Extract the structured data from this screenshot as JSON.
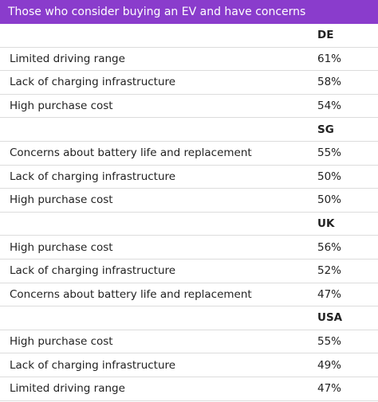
{
  "header": {
    "title": "Those who consider buying an EV and have concerns"
  },
  "table": {
    "groups": [
      {
        "name": "DE",
        "rows": [
          [
            "Limited driving range",
            "61%"
          ],
          [
            "Lack of charging infrastructure",
            "58%"
          ],
          [
            "High purchase cost",
            "54%"
          ]
        ]
      },
      {
        "name": "SG",
        "rows": [
          [
            "Concerns about battery life and replacement",
            "55%"
          ],
          [
            "Lack of charging infrastructure",
            "50%"
          ],
          [
            "High purchase cost",
            "50%"
          ]
        ]
      },
      {
        "name": "UK",
        "rows": [
          [
            "High purchase cost",
            "56%"
          ],
          [
            "Lack of charging infrastructure",
            "52%"
          ],
          [
            "Concerns about battery life and replacement",
            "47%"
          ]
        ]
      },
      {
        "name": "USA",
        "rows": [
          [
            "High purchase cost",
            "55%"
          ],
          [
            "Lack of charging infrastructure",
            "49%"
          ],
          [
            "Limited driving range",
            "47%"
          ]
        ]
      }
    ]
  }
}
